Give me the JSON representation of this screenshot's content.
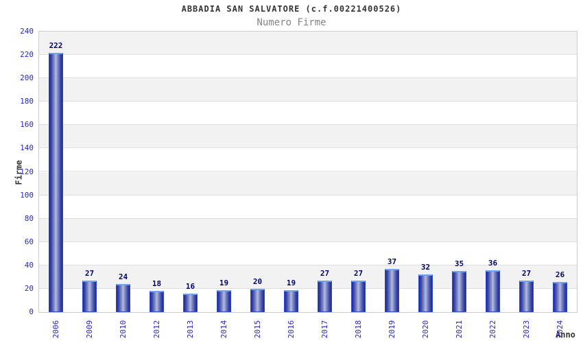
{
  "chart_data": {
    "type": "bar",
    "title": "ABBADIA SAN SALVATORE (c.f.00221400526)",
    "subtitle": "Numero Firme",
    "xlabel": "Anno",
    "ylabel": "Firme",
    "categories": [
      "2006",
      "2009",
      "2010",
      "2012",
      "2013",
      "2014",
      "2015",
      "2016",
      "2017",
      "2018",
      "2019",
      "2020",
      "2021",
      "2022",
      "2023",
      "2024"
    ],
    "values": [
      222,
      27,
      24,
      18,
      16,
      19,
      20,
      19,
      27,
      27,
      37,
      32,
      35,
      36,
      27,
      26
    ],
    "ylim": [
      0,
      240
    ],
    "ytick_step": 20,
    "yticks": [
      0,
      20,
      40,
      60,
      80,
      100,
      120,
      140,
      160,
      180,
      200,
      220,
      240
    ],
    "grid": "horizontal alternating bands with gridlines",
    "legend": "none",
    "bar_value_labels": true,
    "colors": {
      "title": "#333333",
      "subtitle": "#848484",
      "axis_tick_label": "#2626cc",
      "bar_value_label": "#000066",
      "axis_title": "#333333",
      "plot_border": "#cccccc",
      "gridline": "#dedede",
      "band_gray": "#f2f2f2",
      "band_white": "#ffffff",
      "bar_edge_dark": "#1e2a92",
      "bar_center_light": "#b4bce1",
      "bar_border": "#2e4ccc",
      "bar_top_highlight": "#6fa4f2"
    }
  }
}
